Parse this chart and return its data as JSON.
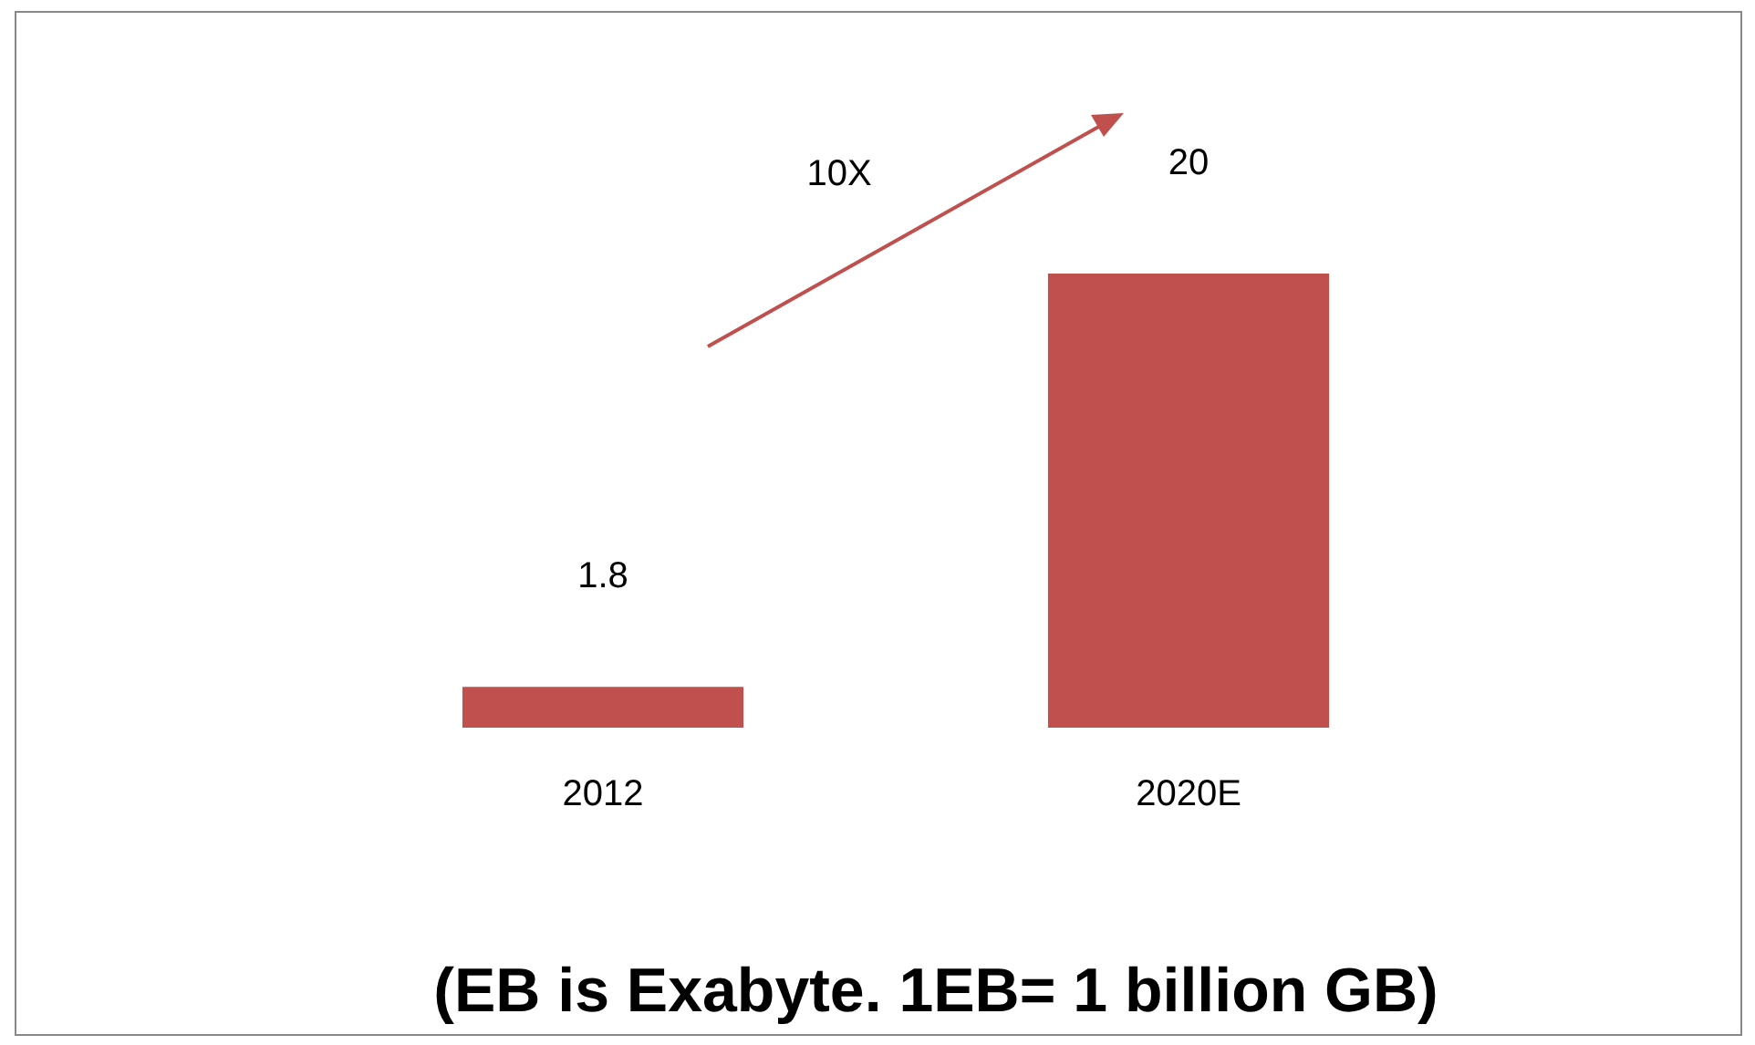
{
  "chart_data": {
    "type": "bar",
    "categories": [
      "2012",
      "2020E"
    ],
    "values": [
      1.8,
      20
    ],
    "color": "#c0504d",
    "data_labels": true,
    "legend": false,
    "grid": false,
    "tick_labels": "x",
    "annotations": [
      "10X",
      "(EB is Exabyte. 1EB= 1 billion GB)"
    ]
  }
}
